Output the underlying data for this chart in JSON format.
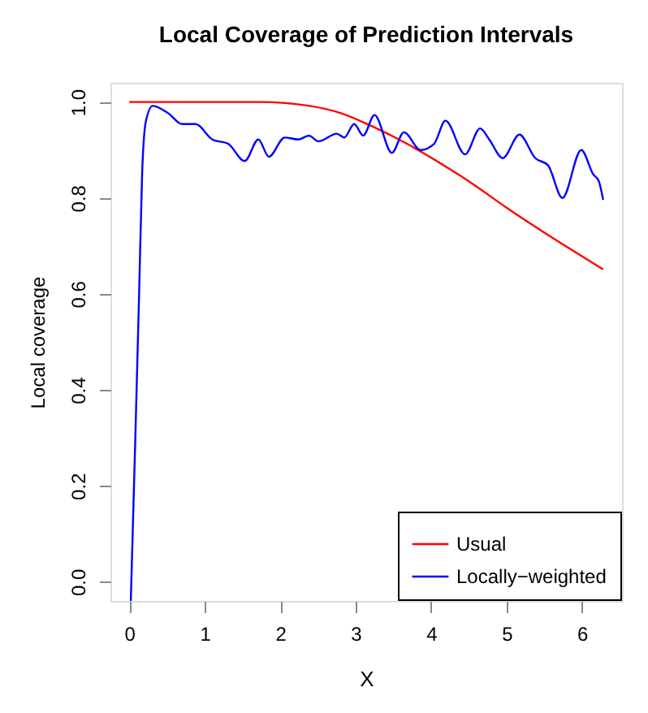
{
  "chart_data": {
    "type": "line",
    "title": "Local Coverage of Prediction Intervals",
    "xlabel": "X",
    "ylabel": "Local coverage",
    "xlim": [
      -0.25,
      6.53
    ],
    "ylim": [
      -0.04,
      1.04
    ],
    "xticks": [
      0,
      1,
      2,
      3,
      4,
      5,
      6
    ],
    "yticks": [
      {
        "value": 0,
        "label": "0.0"
      },
      0.2,
      0.4,
      0.6,
      0.8,
      {
        "value": 1,
        "label": "1.0"
      }
    ],
    "legend": "bottom right",
    "grid": false,
    "marker": "none",
    "line_style": "solid",
    "series": [
      {
        "name": "Usual",
        "color": "#ff0000",
        "x": [
          0,
          1.74,
          2.39,
          2.82,
          3.25,
          3.68,
          4.39,
          5.11,
          5.83,
          6.28
        ],
        "values": [
          1.0,
          1.0,
          0.992,
          0.976,
          0.947,
          0.913,
          0.846,
          0.768,
          0.695,
          0.651
        ]
      },
      {
        "name": "Locally−weighted",
        "color": "#0000ff",
        "x": [
          0.02,
          0.08,
          0.13,
          0.17,
          0.22,
          0.31,
          0.52,
          0.7,
          0.88,
          1.1,
          1.31,
          1.53,
          1.71,
          1.85,
          2.06,
          2.24,
          2.38,
          2.51,
          2.75,
          2.85,
          2.98,
          3.1,
          3.25,
          3.48,
          3.64,
          3.86,
          4.04,
          4.19,
          4.45,
          4.65,
          4.77,
          4.95,
          5.17,
          5.38,
          5.55,
          5.74,
          5.99,
          6.15,
          6.22,
          6.28
        ],
        "values": [
          -0.04,
          0.3,
          0.6,
          0.85,
          0.96,
          0.992,
          0.976,
          0.954,
          0.954,
          0.922,
          0.913,
          0.877,
          0.922,
          0.886,
          0.926,
          0.922,
          0.93,
          0.918,
          0.934,
          0.926,
          0.954,
          0.93,
          0.973,
          0.894,
          0.937,
          0.9,
          0.913,
          0.961,
          0.891,
          0.945,
          0.922,
          0.883,
          0.932,
          0.883,
          0.868,
          0.8,
          0.9,
          0.849,
          0.836,
          0.796
        ]
      }
    ]
  }
}
